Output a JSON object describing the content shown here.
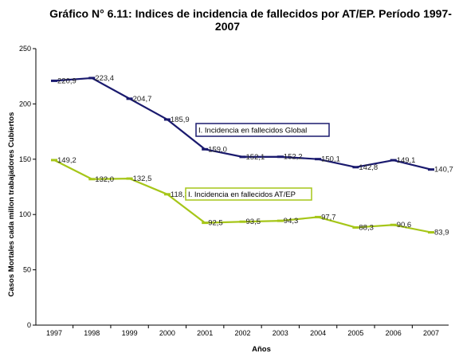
{
  "chart_data": {
    "type": "line",
    "title": "Gráfico N° 6.11: Indices de incidencia de fallecidos por AT/EP. Período 1997-2007",
    "title_lines": [
      "Gráfico N° 6.11: Indices de incidencia de fallecidos por AT/EP. Período 1997-",
      "2007"
    ],
    "xlabel": "Años",
    "ylabel": "Casos Mortales cada millon trabajadores Cubiertos",
    "x": [
      "1997",
      "1998",
      "1999",
      "2000",
      "2001",
      "2002",
      "2003",
      "2004",
      "2005",
      "2006",
      "2007"
    ],
    "ylim": [
      0,
      250
    ],
    "yticks": [
      0,
      50,
      100,
      150,
      200,
      250
    ],
    "grid": false,
    "series": [
      {
        "name": "I. Incidencia en fallecidos Global",
        "color": "#1a1a6e",
        "values": [
          220.9,
          223.4,
          204.7,
          185.9,
          159.0,
          152.1,
          152.2,
          150.1,
          142.8,
          149.1,
          140.7
        ],
        "labels": [
          "220,9",
          "223,4",
          "204,7",
          "185,9",
          "159,0",
          "152,1",
          "152,2",
          "150,1",
          "142,8",
          "149,1",
          "140,7"
        ]
      },
      {
        "name": "I. Incidencia en fallecidos AT/EP",
        "color": "#a6c619",
        "values": [
          149.2,
          132.0,
          132.5,
          118.3,
          92.5,
          93.5,
          94.3,
          97.7,
          88.3,
          90.6,
          83.9
        ],
        "labels": [
          "149,2",
          "132,0",
          "132,5",
          "118,3",
          "92,5",
          "93,5",
          "94,3",
          "97,7",
          "88,3",
          "90,6",
          "83,9"
        ]
      }
    ]
  }
}
